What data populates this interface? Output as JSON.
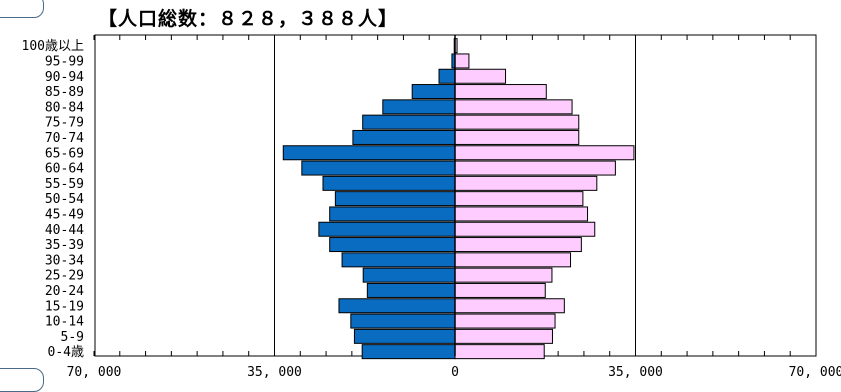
{
  "chart_data": {
    "type": "bar",
    "title": "【人口総数：８２８，３８８人】",
    "orientation": "horizontal-pyramid",
    "categories": [
      "0-4歳",
      "5-9",
      "10-14",
      "15-19",
      "20-24",
      "25-29",
      "30-34",
      "35-39",
      "40-44",
      "45-49",
      "50-54",
      "55-59",
      "60-64",
      "65-69",
      "70-74",
      "75-79",
      "80-84",
      "85-89",
      "90-94",
      "95-99",
      "100歳以上"
    ],
    "series": [
      {
        "side": "left",
        "color": "#0a6cc0",
        "values": [
          18000,
          19500,
          20200,
          22500,
          17000,
          17800,
          21900,
          24300,
          26400,
          24300,
          23200,
          25600,
          29700,
          33300,
          19800,
          17900,
          14000,
          8300,
          3100,
          600,
          150
        ]
      },
      {
        "side": "right",
        "color": "#ffccff",
        "values": [
          17300,
          18900,
          19400,
          21200,
          17500,
          18800,
          22400,
          24500,
          27100,
          25700,
          24800,
          27500,
          31100,
          34700,
          24000,
          24000,
          22700,
          17700,
          9800,
          2700,
          400
        ]
      }
    ],
    "xlim": [
      -70000,
      70000
    ],
    "x_ticks": [
      -70000,
      -35000,
      0,
      35000,
      70000
    ],
    "x_tick_labels": [
      "70, 000",
      "35, 000",
      "0",
      "35, 000",
      "70, 000"
    ],
    "gridlines_x": [
      -35000,
      35000
    ],
    "legend": "none"
  }
}
